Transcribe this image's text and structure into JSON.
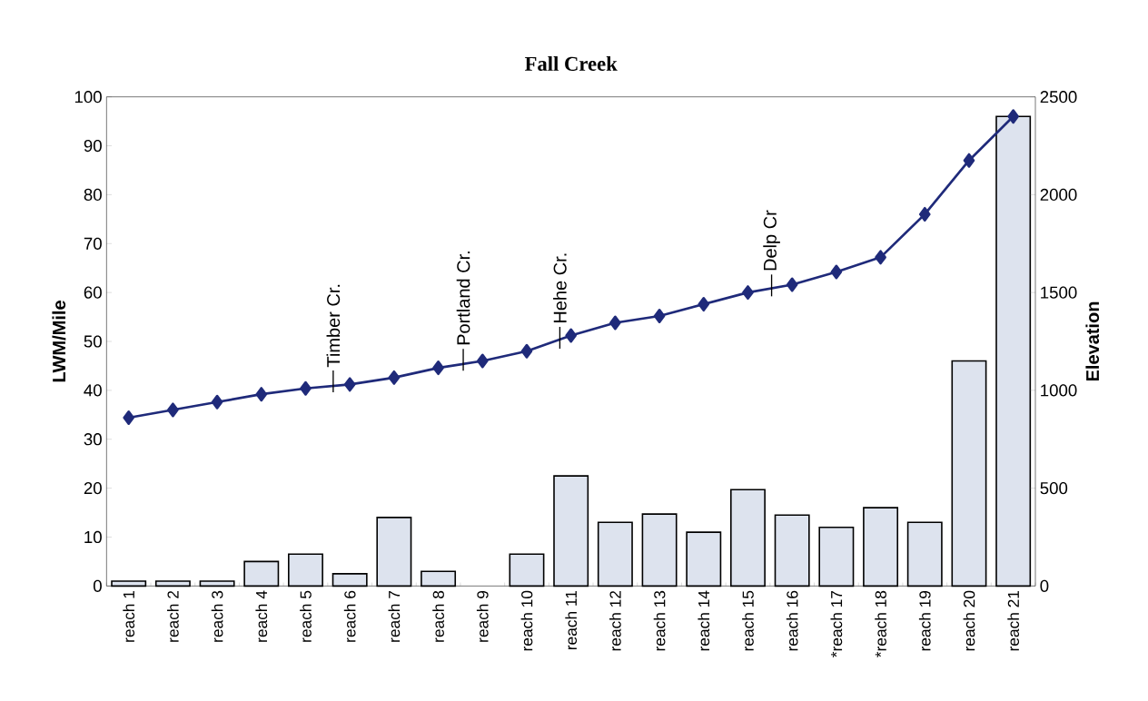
{
  "chart_data": {
    "type": "bar",
    "title": "Fall Creek",
    "ylabel": "LWM/Mile",
    "y2label": "Elevation",
    "categories": [
      "reach 1",
      "reach 2",
      "reach 3",
      "reach 4",
      "reach 5",
      "reach 6",
      "reach 7",
      "reach 8",
      "reach 9",
      "reach 10",
      "reach 11",
      "reach 12",
      "reach 13",
      "reach 14",
      "reach 15",
      "reach 16",
      "*reach 17",
      "*reach 18",
      "reach 19",
      "reach 20",
      "reach 21"
    ],
    "series": [
      {
        "color": "#dde3ee",
        "values": [
          1,
          1,
          1,
          5,
          6.5,
          2.5,
          14,
          3,
          null,
          6.5,
          22.5,
          13,
          14.7,
          11,
          19.7,
          14.5,
          12,
          16,
          13,
          46,
          96
        ]
      },
      {
        "type": "line",
        "axis": "y2",
        "color": "#1f2a7a",
        "marker": "diamond",
        "values": [
          860,
          900,
          940,
          980,
          1010,
          1030,
          1065,
          1115,
          1150,
          1200,
          1280,
          1345,
          1380,
          1440,
          1500,
          1540,
          1605,
          1680,
          1900,
          2175,
          2400
        ]
      }
    ],
    "ylim": [
      0,
      100
    ],
    "yticks": [
      0,
      10,
      20,
      30,
      40,
      50,
      60,
      70,
      80,
      90,
      100
    ],
    "y2lim": [
      0,
      2500
    ],
    "y2ticks": [
      0,
      500,
      1000,
      1500,
      2000,
      2500
    ],
    "annotations": [
      "Timber Cr.",
      "Portland Cr.",
      "Hehe Cr.",
      "Delp Cr"
    ]
  }
}
